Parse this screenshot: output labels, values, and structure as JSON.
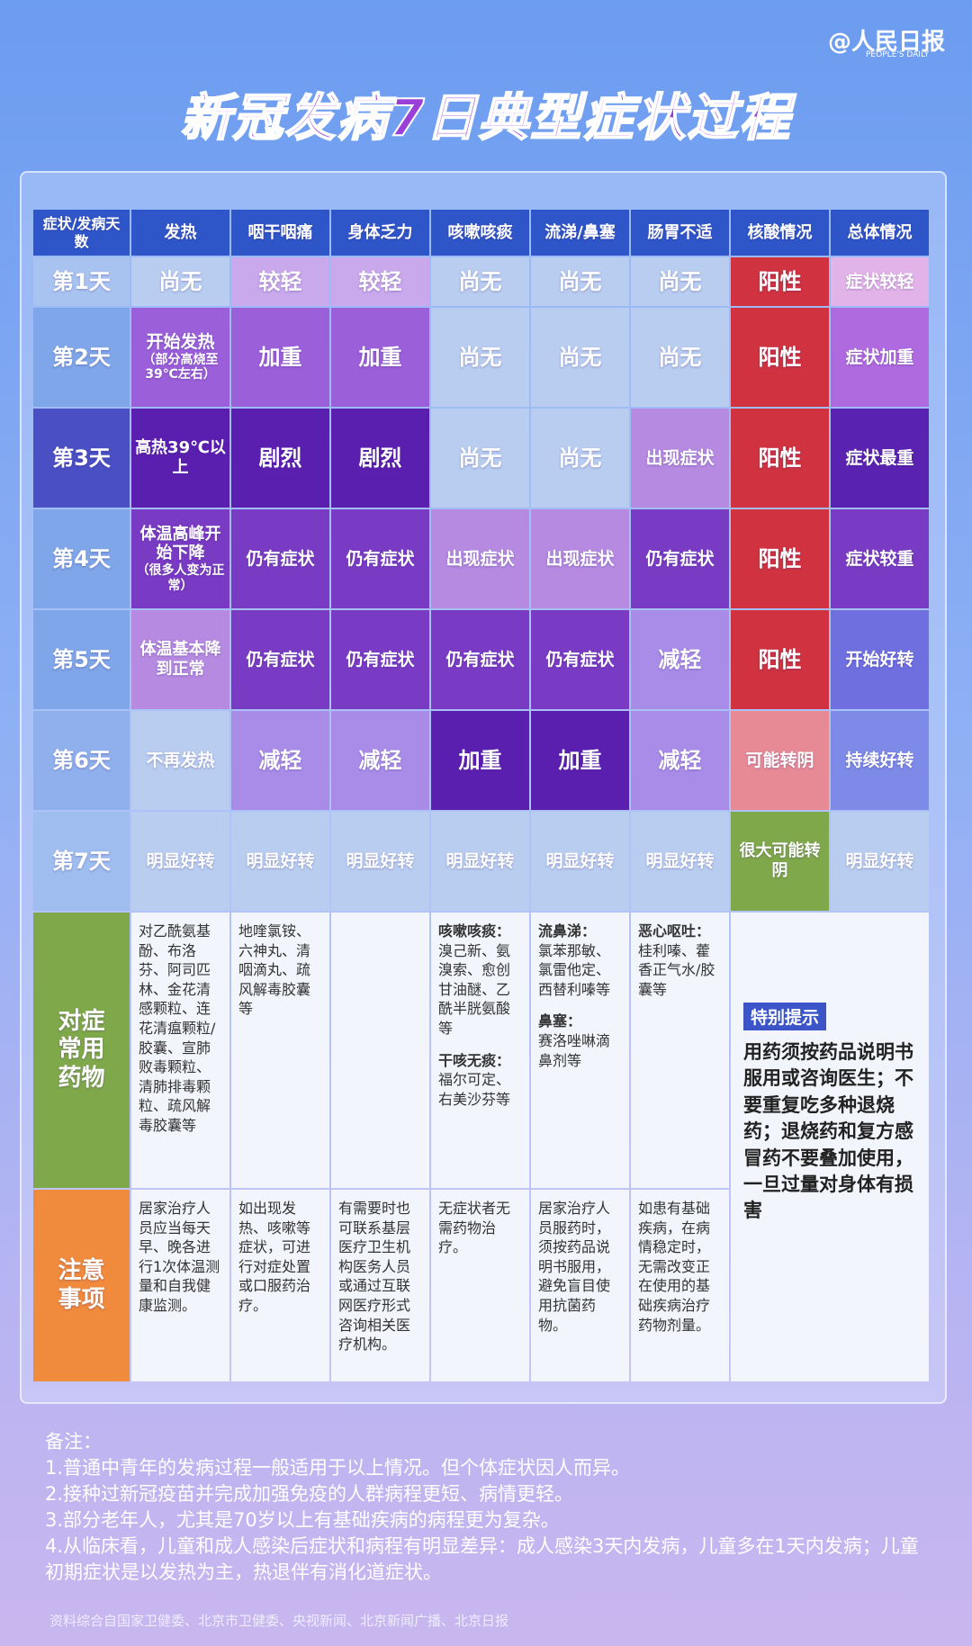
{
  "header": {
    "logo": "人民日报",
    "logo_en": "PEOPLE'S DAILY",
    "title": "新冠发病7日典型症状过程"
  },
  "table": {
    "columns": [
      "症状/发病天数",
      "发热",
      "咽干咽痛",
      "身体乏力",
      "咳嗽咳痰",
      "流涕/鼻塞",
      "肠胃不适",
      "核酸情况",
      "总体情况"
    ],
    "rows": [
      {
        "day": "第1天",
        "color": "#a9c3f1",
        "cells": [
          {
            "text": "尚无",
            "color": "#b9cdf0"
          },
          {
            "text": "较轻",
            "color": "#c9a8ec"
          },
          {
            "text": "较轻",
            "color": "#c9a8ec"
          },
          {
            "text": "尚无",
            "color": "#b9cdf0"
          },
          {
            "text": "尚无",
            "color": "#b9cdf0"
          },
          {
            "text": "尚无",
            "color": "#b9cdf0"
          },
          {
            "text": "阳性",
            "color": "#d0323f"
          },
          {
            "text": "症状较轻",
            "color": "#e2b3e8"
          }
        ]
      },
      {
        "day": "第2天",
        "color": "#7fa6e8",
        "cells": [
          {
            "text": "开始发热",
            "note": "（部分高烧至39℃左右）",
            "color": "#9b5fd9"
          },
          {
            "text": "加重",
            "color": "#9b5fd9"
          },
          {
            "text": "加重",
            "color": "#9b5fd9"
          },
          {
            "text": "尚无",
            "color": "#b9cdf0"
          },
          {
            "text": "尚无",
            "color": "#b9cdf0"
          },
          {
            "text": "尚无",
            "color": "#b9cdf0"
          },
          {
            "text": "阳性",
            "color": "#d0323f"
          },
          {
            "text": "症状加重",
            "color": "#b06ae0"
          }
        ]
      },
      {
        "day": "第3天",
        "color": "#4a4fc4",
        "cells": [
          {
            "text": "高热39℃以上",
            "color": "#5b1fb0"
          },
          {
            "text": "剧烈",
            "color": "#5b1fb0"
          },
          {
            "text": "剧烈",
            "color": "#5b1fb0"
          },
          {
            "text": "尚无",
            "color": "#b9cdf0"
          },
          {
            "text": "尚无",
            "color": "#b9cdf0"
          },
          {
            "text": "出现症状",
            "color": "#b58ae0"
          },
          {
            "text": "阳性",
            "color": "#d0323f"
          },
          {
            "text": "症状最重",
            "color": "#5a22b0"
          }
        ]
      },
      {
        "day": "第4天",
        "color": "#7fa6e8",
        "cells": [
          {
            "text": "体温高峰开始下降",
            "note": "（很多人变为正常）",
            "color": "#7a3bc4"
          },
          {
            "text": "仍有症状",
            "color": "#7a3bc4"
          },
          {
            "text": "仍有症状",
            "color": "#7a3bc4"
          },
          {
            "text": "出现症状",
            "color": "#b58ae0"
          },
          {
            "text": "出现症状",
            "color": "#b58ae0"
          },
          {
            "text": "仍有症状",
            "color": "#7a3bc4"
          },
          {
            "text": "阳性",
            "color": "#d0323f"
          },
          {
            "text": "症状较重",
            "color": "#7a3bc4"
          }
        ]
      },
      {
        "day": "第5天",
        "color": "#7fa6e8",
        "cells": [
          {
            "text": "体温基本降到正常",
            "color": "#b58ae0"
          },
          {
            "text": "仍有症状",
            "color": "#7a3bc4"
          },
          {
            "text": "仍有症状",
            "color": "#7a3bc4"
          },
          {
            "text": "仍有症状",
            "color": "#7a3bc4"
          },
          {
            "text": "仍有症状",
            "color": "#7a3bc4"
          },
          {
            "text": "减轻",
            "color": "#a98ce8"
          },
          {
            "text": "阳性",
            "color": "#d0323f"
          },
          {
            "text": "开始好转",
            "color": "#6f6fe0"
          }
        ]
      },
      {
        "day": "第6天",
        "color": "#8fb0ec",
        "cells": [
          {
            "text": "不再发热",
            "color": "#b9cdf0"
          },
          {
            "text": "减轻",
            "color": "#a98ce8"
          },
          {
            "text": "减轻",
            "color": "#a98ce8"
          },
          {
            "text": "加重",
            "color": "#5b1fb0"
          },
          {
            "text": "加重",
            "color": "#5b1fb0"
          },
          {
            "text": "减轻",
            "color": "#a98ce8"
          },
          {
            "text": "可能转阴",
            "color": "#e88a96"
          },
          {
            "text": "持续好转",
            "color": "#7d8ae8"
          }
        ]
      },
      {
        "day": "第7天",
        "color": "#9fbdef",
        "cells": [
          {
            "text": "明显好转",
            "color": "#b9cdf0"
          },
          {
            "text": "明显好转",
            "color": "#b9cdf0"
          },
          {
            "text": "明显好转",
            "color": "#b9cdf0"
          },
          {
            "text": "明显好转",
            "color": "#b9cdf0"
          },
          {
            "text": "明显好转",
            "color": "#b9cdf0"
          },
          {
            "text": "明显好转",
            "color": "#b9cdf0"
          },
          {
            "text": "很大可能转阴",
            "color": "#7fa84a"
          },
          {
            "text": "明显好转",
            "color": "#b9cdf0"
          }
        ]
      }
    ],
    "medicine": {
      "label": "对症常用药物",
      "color": "#7fa84a",
      "cells": [
        [
          {
            "text": "对乙酰氨基酚、布洛芬、阿司匹林、金花清感颗粒、连花清瘟颗粒/胶囊、宣肺败毒颗粒、清肺排毒颗粒、疏风解毒胶囊等"
          }
        ],
        [
          {
            "text": "地喹氯铵、六神丸、清咽滴丸、疏风解毒胶囊等"
          }
        ],
        [],
        [
          {
            "heading": "咳嗽咳痰：",
            "text": "溴己新、氨溴索、愈创甘油醚、乙酰半胱氨酸等"
          },
          {
            "heading": "干咳无痰：",
            "text": "福尔可定、右美沙芬等"
          }
        ],
        [
          {
            "heading": "流鼻涕：",
            "text": "氯苯那敏、氯雷他定、西替利嗪等"
          },
          {
            "heading": "鼻塞：",
            "text": "赛洛唑啉滴鼻剂等"
          }
        ],
        [
          {
            "heading": "恶心呕吐：",
            "text": "桂利嗪、藿香正气水/胶囊等"
          }
        ]
      ]
    },
    "notes": {
      "label": "注意事项",
      "color": "#f08a3c",
      "cells": [
        "居家治疗人员应当每天早、晚各进行1次体温测量和自我健康监测。",
        "如出现发热、咳嗽等症状，可进行对症处置或口服药治疗。",
        "有需要时也可联系基层医疗卫生机构医务人员或通过互联网医疗形式咨询相关医疗机构。",
        "无症状者无需药物治疗。",
        "居家治疗人员服药时，须按药品说明书服用，避免盲目使用抗菌药物。",
        "如患有基础疾病，在病情稳定时，无需改变正在使用的基础疾病治疗药物剂量。"
      ]
    },
    "tip": {
      "label": "特别提示",
      "text": "用药须按药品说明书服用或咨询医生；不要重复吃多种退烧药；退烧药和复方感冒药不要叠加使用，一旦过量对身体有损害"
    }
  },
  "remarks": {
    "label": "备注：",
    "items": [
      "1.普通中青年的发病过程一般适用于以上情况。但个体症状因人而异。",
      "2.接种过新冠疫苗并完成加强免疫的人群病程更短、病情更轻。",
      "3.部分老年人，尤其是70岁以上有基础疾病的病程更为复杂。",
      "4.从临床看，儿童和成人感染后症状和病程有明显差异：成人感染3天内发病，儿童多在1天内发病；儿童初期症状是以发热为主，热退伴有消化道症状。"
    ]
  },
  "source": "资料综合自国家卫健委、北京市卫健委、央视新闻、北京新闻广播、北京日报"
}
